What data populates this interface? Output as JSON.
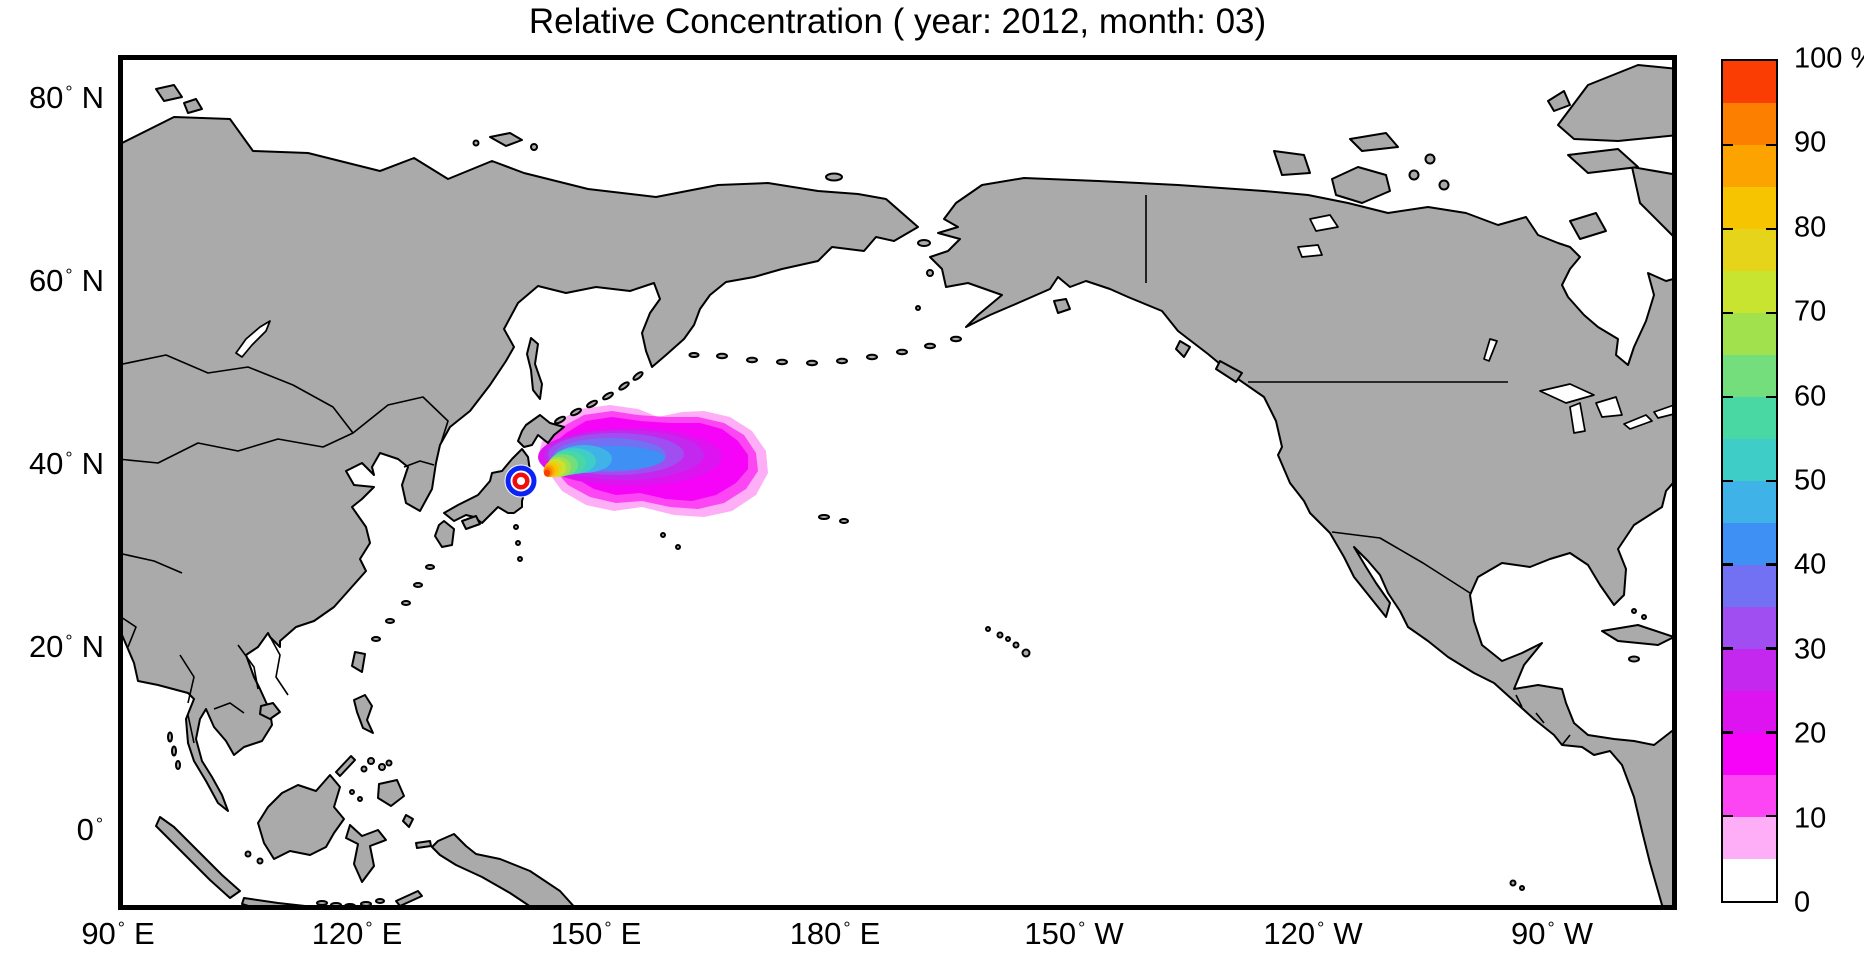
{
  "title": "Relative Concentration ( year: 2012, month: 03)",
  "map": {
    "land_color": "#aaaaaa",
    "ocean_color": "#ffffff",
    "coastline_color": "#000000"
  },
  "x_axis": {
    "ticks": [
      {
        "num": "90",
        "deg": "°",
        "hemi": "E"
      },
      {
        "num": "120",
        "deg": "°",
        "hemi": "E"
      },
      {
        "num": "150",
        "deg": "°",
        "hemi": "E"
      },
      {
        "num": "180",
        "deg": "°",
        "hemi": "E"
      },
      {
        "num": "150",
        "deg": "°",
        "hemi": "W"
      },
      {
        "num": "120",
        "deg": "°",
        "hemi": "W"
      },
      {
        "num": "90",
        "deg": "°",
        "hemi": "W"
      }
    ]
  },
  "y_axis": {
    "ticks": [
      {
        "num": "80",
        "deg": "°",
        "hemi": "N"
      },
      {
        "num": "60",
        "deg": "°",
        "hemi": "N"
      },
      {
        "num": "40",
        "deg": "°",
        "hemi": "N"
      },
      {
        "num": "20",
        "deg": "°",
        "hemi": "N"
      },
      {
        "num": "0",
        "deg": "°",
        "hemi": ""
      }
    ]
  },
  "colorbar": {
    "top_label": "100 %",
    "labels": [
      "100 %",
      "90",
      "80",
      "70",
      "60",
      "50",
      "40",
      "30",
      "20",
      "10",
      "0"
    ],
    "colors_low_to_high": [
      "#ffffff",
      "#fdaef6",
      "#fc45f3",
      "#f504f8",
      "#dd14ef",
      "#c427ee",
      "#a04df2",
      "#7270f3",
      "#3f90f4",
      "#3fb3e7",
      "#3fcdc8",
      "#49d8a4",
      "#74dd7c",
      "#a2e14e",
      "#c8e330",
      "#e5d41a",
      "#f6c400",
      "#fda300",
      "#fd7f00",
      "#f93d03"
    ]
  },
  "source_marker": {
    "outer_ring_color": "#0b24f5",
    "inner_ring_color": "#f20d0d"
  },
  "chart_data": {
    "type": "heatmap",
    "title": "Relative Concentration ( year: 2012, month: 03)",
    "x_tick_labels": [
      "90° E",
      "120° E",
      "150° E",
      "180° E",
      "150° W",
      "120° W",
      "90° W"
    ],
    "y_tick_labels": [
      "80° N",
      "60° N",
      "40° N",
      "20° N",
      "0°"
    ],
    "axis_extent": {
      "lon_deg_east_positive": [
        90,
        286
      ],
      "lat_deg": [
        -9,
        85
      ]
    },
    "colorbar": {
      "unit": "%",
      "min": 0,
      "max": 100,
      "tick_interval": 10,
      "n_levels": 20,
      "level_step": 5,
      "colors_low_to_high": [
        "#ffffff",
        "#fdaef6",
        "#fc45f3",
        "#f504f8",
        "#dd14ef",
        "#c427ee",
        "#a04df2",
        "#7270f3",
        "#3f90f4",
        "#3fb3e7",
        "#3fcdc8",
        "#49d8a4",
        "#74dd7c",
        "#a2e14e",
        "#c8e330",
        "#e5d41a",
        "#f6c400",
        "#fda300",
        "#fd7f00",
        "#f93d03"
      ],
      "legend_position": "right"
    },
    "plume": {
      "description": "Relative-concentration plume spreading east-northeast from a coastal source on Honshu, Japan into the North Pacific; concentration decreases outward from ~100% at the source through yellow/green/cyan/blue/violet bands to a broad 5-20% magenta-pink lobe",
      "source_lon_deg": 141,
      "source_lat_deg": 38,
      "extent_lon_deg": [
        141,
        169
      ],
      "extent_lat_deg": [
        34,
        46
      ],
      "source_marker": "blue outer ring with red inner ring bullseye"
    },
    "basemap": "Pacific-centered world map, gray continents with black coastlines and national borders, white ocean, black rectangular frame",
    "grid": false
  }
}
